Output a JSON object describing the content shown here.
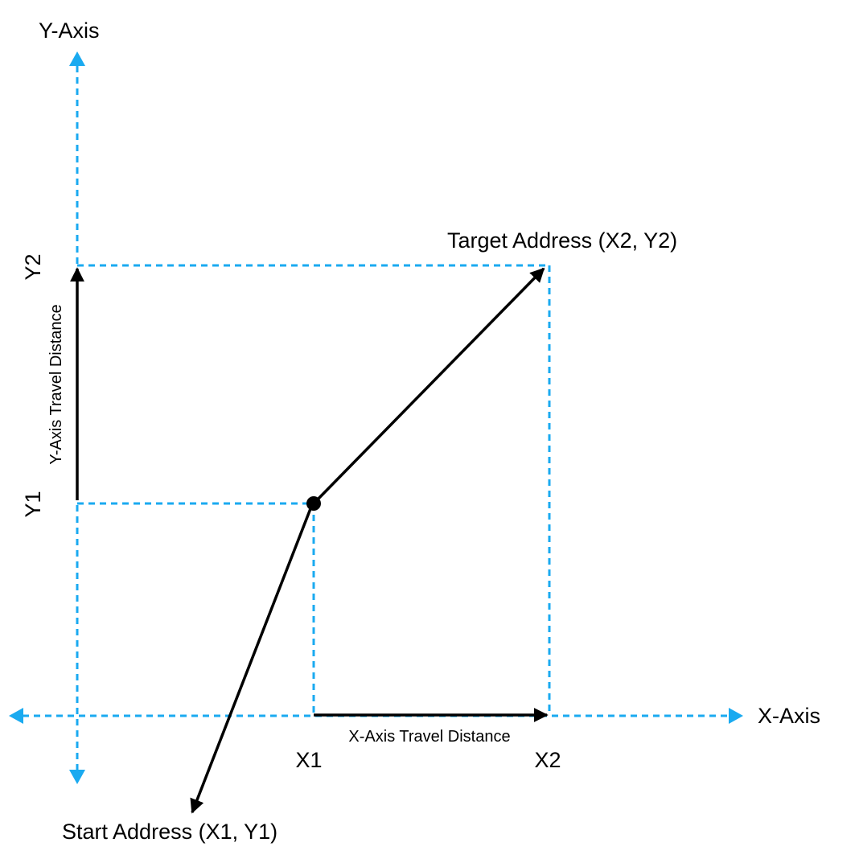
{
  "labels": {
    "y_axis": "Y-Axis",
    "x_axis": "X-Axis",
    "y2": "Y2",
    "y1": "Y1",
    "x1": "X1",
    "x2": "X2",
    "target": "Target Address (X2, Y2)",
    "start": "Start Address (X1, Y1)",
    "y_travel": "Y-Axis Travel Distance",
    "x_travel": "X-Axis Travel Distance"
  },
  "colors": {
    "axis": "#1aaaf0",
    "guide": "#1aaaf0",
    "arrow": "#000000",
    "text": "#000000",
    "background": "#ffffff"
  }
}
